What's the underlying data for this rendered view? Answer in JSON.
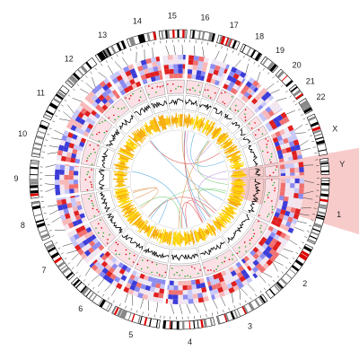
{
  "chromosomes": [
    "1",
    "2",
    "3",
    "4",
    "5",
    "6",
    "7",
    "8",
    "9",
    "10",
    "11",
    "12",
    "13",
    "14",
    "15",
    "16",
    "17",
    "18",
    "19",
    "20",
    "21",
    "22",
    "X",
    "Y"
  ]
}
